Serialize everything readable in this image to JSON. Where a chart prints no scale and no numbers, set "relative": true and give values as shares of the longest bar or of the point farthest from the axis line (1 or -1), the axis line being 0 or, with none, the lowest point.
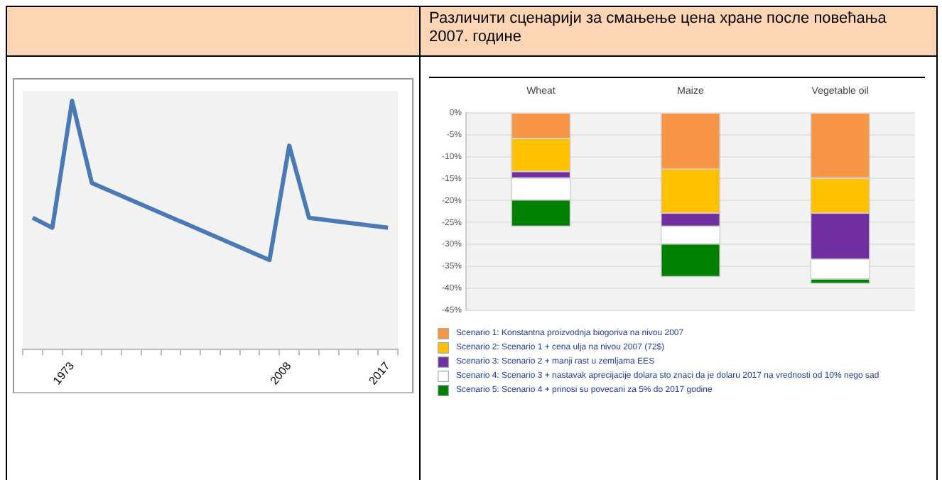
{
  "chart_data": [
    {
      "type": "line",
      "relative": true,
      "categories": [
        null,
        null,
        "1973",
        null,
        null,
        null,
        null,
        null,
        null,
        null,
        null,
        null,
        null,
        "2008",
        null,
        null,
        null,
        null,
        "2017"
      ],
      "series": [
        {
          "color": "#4a7ab5",
          "values": [
            0.53,
            0.49,
            1,
            0.67,
            null,
            null,
            null,
            null,
            null,
            null,
            null,
            null,
            0.36,
            0.82,
            0.53,
            null,
            null,
            null,
            0.49
          ]
        }
      ],
      "grid": false,
      "legend": false,
      "marker": "none",
      "line_style": "solid"
    },
    {
      "type": "bar",
      "stacked": true,
      "title": "Различити сценарији за смањење цена хране после повећања 2007. године",
      "categories": [
        "Wheat",
        "Maize",
        "Vegetable oil"
      ],
      "ylim": [
        -45,
        0
      ],
      "yticks": [
        {
          "value": 0,
          "label": "0%"
        },
        {
          "value": -5,
          "label": "-5%"
        },
        {
          "value": -10,
          "label": "-10%"
        },
        {
          "value": -15,
          "label": "-15%"
        },
        {
          "value": -20,
          "label": "-20%"
        },
        {
          "value": -25,
          "label": "-25%"
        },
        {
          "value": -30,
          "label": "-30%"
        },
        {
          "value": -35,
          "label": "-35%"
        },
        {
          "value": -40,
          "label": "-40%"
        },
        {
          "value": -45,
          "label": "-45%"
        }
      ],
      "series": [
        {
          "name": "Scenario 1: Konstantna proizvodnja biogoriva na nivou 2007",
          "color": "#f79646",
          "values": [
            -6,
            -13,
            -15
          ]
        },
        {
          "name": "Scenario 2: Scenario 1 + cena ulja na nivou 2007 (72$)",
          "color": "#ffc000",
          "values": [
            -7.5,
            -10,
            -8
          ]
        },
        {
          "name": "Scenario 3: Scenario 2 + manji rast u zemljama EES",
          "color": "#7030a0",
          "values": [
            -1.5,
            -3,
            -10.5
          ]
        },
        {
          "name": "Scenario 4: Scenario 3 + nastavak aprecijacije dolara sto znaci da je dolaru 2017 na vrednosti od 10% nego sad",
          "color": "#fefefe",
          "values": [
            -5,
            -4,
            -4.5
          ]
        },
        {
          "name": "Scenario 5: Scenario 4 + prinosi su povecani za 5% do 2017 godine",
          "color": "#008000",
          "values": [
            -6,
            -7.5,
            -1
          ]
        }
      ],
      "grid": "y",
      "legend": "bottom"
    }
  ]
}
